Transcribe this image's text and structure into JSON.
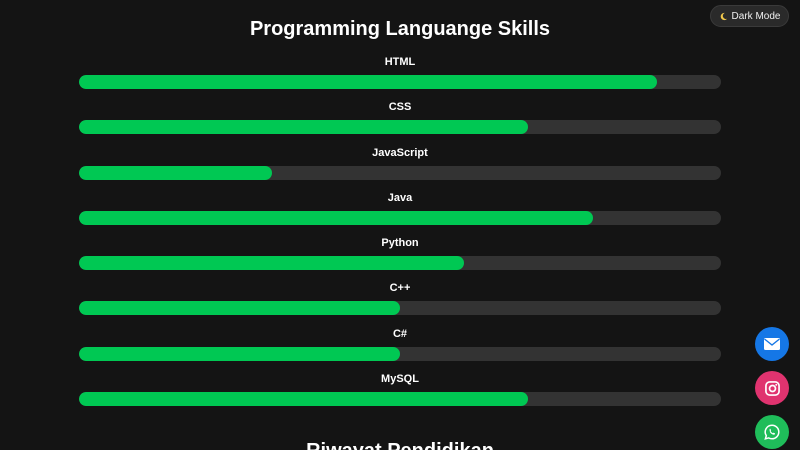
{
  "page": {
    "title": "Programming Languange Skills",
    "next_section_title": "Riwayat Pendidikan"
  },
  "theme_toggle": {
    "label": "Dark Mode",
    "icon": "moon-icon"
  },
  "skills": [
    {
      "name": "HTML",
      "level": 0.9
    },
    {
      "name": "CSS",
      "level": 0.7
    },
    {
      "name": "JavaScript",
      "level": 0.3
    },
    {
      "name": "Java",
      "level": 0.8
    },
    {
      "name": "Python",
      "level": 0.6
    },
    {
      "name": "C++",
      "level": 0.5
    },
    {
      "name": "C#",
      "level": 0.5
    },
    {
      "name": "MySQL",
      "level": 0.7
    }
  ],
  "social_buttons": [
    {
      "icon": "mail-icon",
      "color": "#1577e6"
    },
    {
      "icon": "instagram-icon",
      "color": "#e0336f"
    },
    {
      "icon": "whatsapp-icon",
      "color": "#1fbd5a"
    }
  ],
  "colors": {
    "background": "#141414",
    "bar_fill": "#00c853",
    "bar_track": "#333333"
  }
}
